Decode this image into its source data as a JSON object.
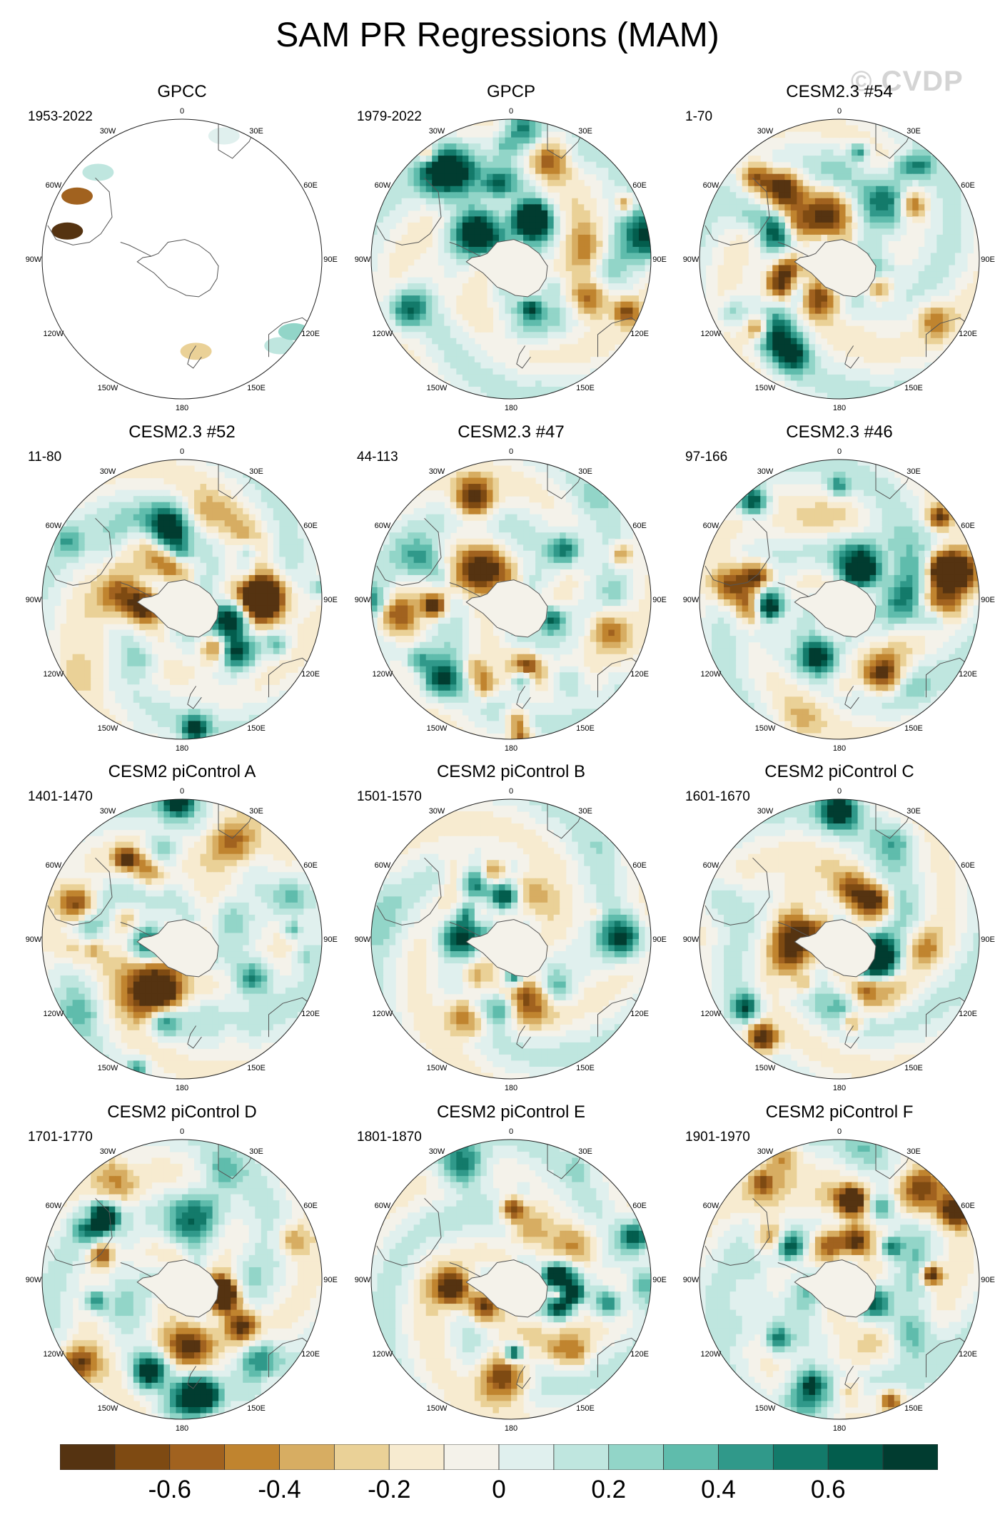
{
  "chart_data": {
    "type": "polar-contour-map",
    "title": "SAM PR Regressions (MAM)",
    "watermark": "© CVDP",
    "projection": "south polar stereographic",
    "longitude_labels": [
      "0",
      "30E",
      "60E",
      "90E",
      "120E",
      "150E",
      "180",
      "150W",
      "120W",
      "90W",
      "60W",
      "30W"
    ],
    "panels": [
      {
        "title": "GPCC",
        "years": "1953-2022",
        "coverage": "land-only",
        "seed": 3
      },
      {
        "title": "GPCP",
        "years": "1979-2022",
        "coverage": "full",
        "seed": 11
      },
      {
        "title": "CESM2.3 #54",
        "years": "1-70",
        "coverage": "full",
        "seed": 17
      },
      {
        "title": "CESM2.3 #52",
        "years": "11-80",
        "coverage": "full",
        "seed": 23
      },
      {
        "title": "CESM2.3 #47",
        "years": "44-113",
        "coverage": "full",
        "seed": 29
      },
      {
        "title": "CESM2.3 #46",
        "years": "97-166",
        "coverage": "full",
        "seed": 31
      },
      {
        "title": "CESM2 piControl A",
        "years": "1401-1470",
        "coverage": "full",
        "seed": 37
      },
      {
        "title": "CESM2 piControl B",
        "years": "1501-1570",
        "coverage": "full",
        "seed": 41
      },
      {
        "title": "CESM2 piControl C",
        "years": "1601-1670",
        "coverage": "full",
        "seed": 43
      },
      {
        "title": "CESM2 piControl D",
        "years": "1701-1770",
        "coverage": "full",
        "seed": 47
      },
      {
        "title": "CESM2 piControl E",
        "years": "1801-1870",
        "coverage": "full",
        "seed": 53
      },
      {
        "title": "CESM2 piControl F",
        "years": "1901-1970",
        "coverage": "full",
        "seed": 59
      }
    ],
    "colorbar": {
      "colors": [
        "#553311",
        "#7e4a12",
        "#a1621f",
        "#c0842f",
        "#d7ad62",
        "#ead197",
        "#f7ebd0",
        "#f4f2ea",
        "#e0f0ee",
        "#bfe6df",
        "#92d5c8",
        "#5fbcac",
        "#30998a",
        "#137a6a",
        "#035d4d",
        "#013c30"
      ],
      "labels": [
        "-0.6",
        "-0.4",
        "-0.2",
        "0",
        "0.2",
        "0.4",
        "0.6"
      ],
      "label_boundary_index": [
        2,
        4,
        6,
        8,
        10,
        12,
        14
      ]
    }
  }
}
